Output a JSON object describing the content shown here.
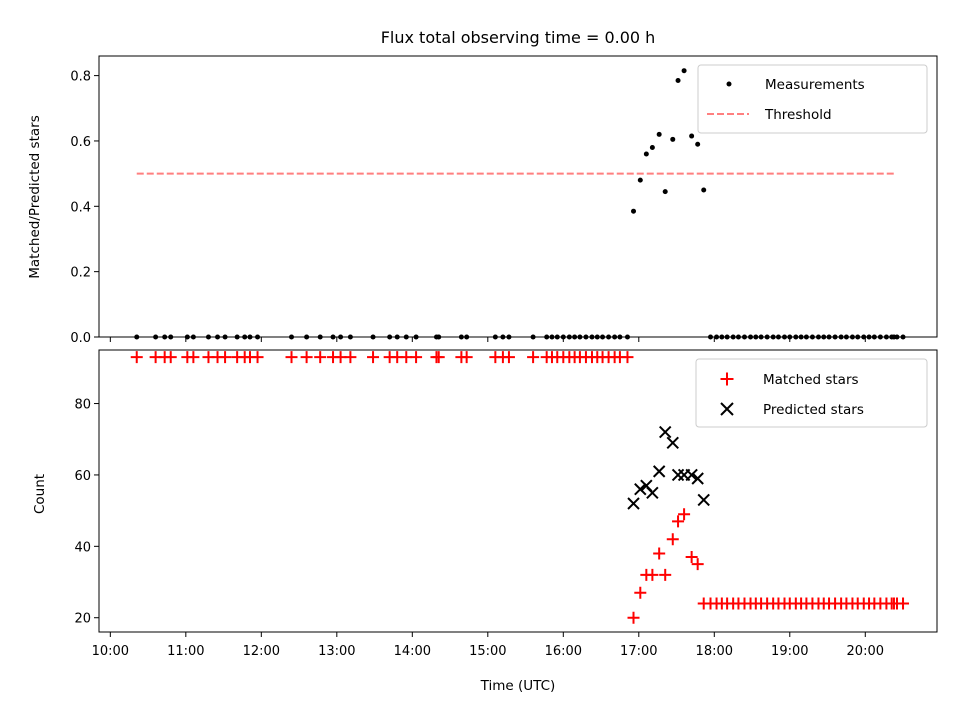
{
  "title": "Flux total observing time = 0.00 h",
  "colors": {
    "measurement": "#000000",
    "threshold": "#ff7f7f",
    "matched": "#ff0000",
    "predicted": "#000000"
  },
  "chart_data": [
    {
      "type": "scatter",
      "ylabel": "Matched/Predicted stars",
      "xlim": [
        9.85,
        20.95
      ],
      "ylim": [
        0,
        0.86
      ],
      "yticks": [
        0.0,
        0.2,
        0.4,
        0.6,
        0.8
      ],
      "ytick_labels": [
        "0.0",
        "0.2",
        "0.4",
        "0.6",
        "0.8"
      ],
      "legend": {
        "position": "top-right",
        "entries": [
          {
            "label": "Measurements",
            "marker": "dot"
          },
          {
            "label": "Threshold",
            "marker": "dashed-line"
          }
        ]
      },
      "threshold": {
        "name": "Threshold",
        "y": 0.5,
        "x": [
          10.35,
          20.4
        ]
      },
      "measurements": {
        "name": "Measurements",
        "points": [
          [
            10.35,
            0
          ],
          [
            10.6,
            0
          ],
          [
            10.72,
            0
          ],
          [
            10.8,
            0
          ],
          [
            11.02,
            0
          ],
          [
            11.1,
            0
          ],
          [
            11.3,
            0
          ],
          [
            11.42,
            0
          ],
          [
            11.52,
            0
          ],
          [
            11.68,
            0
          ],
          [
            11.78,
            0
          ],
          [
            11.85,
            0
          ],
          [
            11.95,
            0
          ],
          [
            12.4,
            0
          ],
          [
            12.6,
            0
          ],
          [
            12.78,
            0
          ],
          [
            12.95,
            0
          ],
          [
            13.05,
            0
          ],
          [
            13.18,
            0
          ],
          [
            13.48,
            0
          ],
          [
            13.7,
            0
          ],
          [
            13.8,
            0
          ],
          [
            13.92,
            0
          ],
          [
            14.05,
            0
          ],
          [
            14.32,
            0
          ],
          [
            14.35,
            0
          ],
          [
            14.65,
            0
          ],
          [
            14.72,
            0
          ],
          [
            15.1,
            0
          ],
          [
            15.2,
            0
          ],
          [
            15.28,
            0
          ],
          [
            15.6,
            0
          ],
          [
            15.78,
            0
          ],
          [
            15.85,
            0
          ],
          [
            15.92,
            0
          ],
          [
            16.0,
            0
          ],
          [
            16.08,
            0
          ],
          [
            16.15,
            0
          ],
          [
            16.22,
            0
          ],
          [
            16.3,
            0
          ],
          [
            16.38,
            0
          ],
          [
            16.45,
            0
          ],
          [
            16.52,
            0
          ],
          [
            16.6,
            0
          ],
          [
            16.68,
            0
          ],
          [
            16.75,
            0
          ],
          [
            16.85,
            0
          ],
          [
            16.93,
            0.385
          ],
          [
            17.02,
            0.48
          ],
          [
            17.1,
            0.56
          ],
          [
            17.18,
            0.58
          ],
          [
            17.27,
            0.62
          ],
          [
            17.35,
            0.445
          ],
          [
            17.45,
            0.605
          ],
          [
            17.52,
            0.785
          ],
          [
            17.6,
            0.815
          ],
          [
            17.7,
            0.615
          ],
          [
            17.78,
            0.59
          ],
          [
            17.86,
            0.45
          ],
          [
            17.95,
            0
          ],
          [
            18.03,
            0
          ],
          [
            18.1,
            0
          ],
          [
            18.17,
            0
          ],
          [
            18.25,
            0
          ],
          [
            18.32,
            0
          ],
          [
            18.4,
            0
          ],
          [
            18.48,
            0
          ],
          [
            18.55,
            0
          ],
          [
            18.62,
            0
          ],
          [
            18.7,
            0
          ],
          [
            18.78,
            0
          ],
          [
            18.85,
            0
          ],
          [
            18.93,
            0
          ],
          [
            19.0,
            0
          ],
          [
            19.08,
            0
          ],
          [
            19.15,
            0
          ],
          [
            19.22,
            0
          ],
          [
            19.3,
            0
          ],
          [
            19.38,
            0
          ],
          [
            19.45,
            0
          ],
          [
            19.52,
            0
          ],
          [
            19.6,
            0
          ],
          [
            19.68,
            0
          ],
          [
            19.75,
            0
          ],
          [
            19.83,
            0
          ],
          [
            19.9,
            0
          ],
          [
            19.98,
            0
          ],
          [
            20.05,
            0
          ],
          [
            20.12,
            0
          ],
          [
            20.2,
            0
          ],
          [
            20.28,
            0
          ],
          [
            20.35,
            0
          ],
          [
            20.38,
            0
          ],
          [
            20.42,
            0
          ],
          [
            20.5,
            0
          ]
        ]
      }
    },
    {
      "type": "scatter",
      "xlabel": "Time (UTC)",
      "ylabel": "Count",
      "xlim": [
        9.85,
        20.95
      ],
      "ylim": [
        16,
        95
      ],
      "xticks": [
        10,
        11,
        12,
        13,
        14,
        15,
        16,
        17,
        18,
        19,
        20
      ],
      "xtick_labels": [
        "10:00",
        "11:00",
        "12:00",
        "13:00",
        "14:00",
        "15:00",
        "16:00",
        "17:00",
        "18:00",
        "19:00",
        "20:00"
      ],
      "yticks": [
        20,
        40,
        60,
        80
      ],
      "ytick_labels": [
        "20",
        "40",
        "60",
        "80"
      ],
      "legend": {
        "position": "top-right",
        "entries": [
          {
            "label": "Matched stars",
            "marker": "plus"
          },
          {
            "label": "Predicted stars",
            "marker": "x"
          }
        ]
      },
      "series": [
        {
          "name": "Matched stars",
          "marker": "plus",
          "points": [
            [
              10.35,
              93
            ],
            [
              10.6,
              93
            ],
            [
              10.72,
              93
            ],
            [
              10.8,
              93
            ],
            [
              11.02,
              93
            ],
            [
              11.1,
              93
            ],
            [
              11.3,
              93
            ],
            [
              11.42,
              93
            ],
            [
              11.52,
              93
            ],
            [
              11.68,
              93
            ],
            [
              11.78,
              93
            ],
            [
              11.85,
              93
            ],
            [
              11.95,
              93
            ],
            [
              12.4,
              93
            ],
            [
              12.6,
              93
            ],
            [
              12.78,
              93
            ],
            [
              12.95,
              93
            ],
            [
              13.05,
              93
            ],
            [
              13.18,
              93
            ],
            [
              13.48,
              93
            ],
            [
              13.7,
              93
            ],
            [
              13.8,
              93
            ],
            [
              13.92,
              93
            ],
            [
              14.05,
              93
            ],
            [
              14.32,
              93
            ],
            [
              14.35,
              93
            ],
            [
              14.65,
              93
            ],
            [
              14.72,
              93
            ],
            [
              15.1,
              93
            ],
            [
              15.2,
              93
            ],
            [
              15.28,
              93
            ],
            [
              15.6,
              93
            ],
            [
              15.78,
              93
            ],
            [
              15.85,
              93
            ],
            [
              15.92,
              93
            ],
            [
              16.0,
              93
            ],
            [
              16.08,
              93
            ],
            [
              16.15,
              93
            ],
            [
              16.22,
              93
            ],
            [
              16.3,
              93
            ],
            [
              16.38,
              93
            ],
            [
              16.45,
              93
            ],
            [
              16.52,
              93
            ],
            [
              16.6,
              93
            ],
            [
              16.68,
              93
            ],
            [
              16.75,
              93
            ],
            [
              16.85,
              93
            ],
            [
              16.93,
              20
            ],
            [
              17.02,
              27
            ],
            [
              17.1,
              32
            ],
            [
              17.18,
              32
            ],
            [
              17.27,
              38
            ],
            [
              17.35,
              32
            ],
            [
              17.45,
              42
            ],
            [
              17.52,
              47
            ],
            [
              17.6,
              49
            ],
            [
              17.7,
              37
            ],
            [
              17.78,
              35
            ],
            [
              17.86,
              24
            ],
            [
              17.95,
              24
            ],
            [
              18.03,
              24
            ],
            [
              18.1,
              24
            ],
            [
              18.17,
              24
            ],
            [
              18.25,
              24
            ],
            [
              18.32,
              24
            ],
            [
              18.4,
              24
            ],
            [
              18.48,
              24
            ],
            [
              18.55,
              24
            ],
            [
              18.62,
              24
            ],
            [
              18.7,
              24
            ],
            [
              18.78,
              24
            ],
            [
              18.85,
              24
            ],
            [
              18.93,
              24
            ],
            [
              19.0,
              24
            ],
            [
              19.08,
              24
            ],
            [
              19.15,
              24
            ],
            [
              19.22,
              24
            ],
            [
              19.3,
              24
            ],
            [
              19.38,
              24
            ],
            [
              19.45,
              24
            ],
            [
              19.52,
              24
            ],
            [
              19.6,
              24
            ],
            [
              19.68,
              24
            ],
            [
              19.75,
              24
            ],
            [
              19.83,
              24
            ],
            [
              19.9,
              24
            ],
            [
              19.98,
              24
            ],
            [
              20.05,
              24
            ],
            [
              20.12,
              24
            ],
            [
              20.2,
              24
            ],
            [
              20.28,
              24
            ],
            [
              20.35,
              24
            ],
            [
              20.38,
              24
            ],
            [
              20.42,
              24
            ],
            [
              20.5,
              24
            ]
          ]
        },
        {
          "name": "Predicted stars",
          "marker": "x",
          "points": [
            [
              16.93,
              52
            ],
            [
              17.02,
              56
            ],
            [
              17.1,
              57
            ],
            [
              17.18,
              55
            ],
            [
              17.27,
              61
            ],
            [
              17.35,
              72
            ],
            [
              17.45,
              69
            ],
            [
              17.52,
              60
            ],
            [
              17.6,
              60
            ],
            [
              17.7,
              60
            ],
            [
              17.78,
              59
            ],
            [
              17.86,
              53
            ]
          ]
        }
      ]
    }
  ]
}
